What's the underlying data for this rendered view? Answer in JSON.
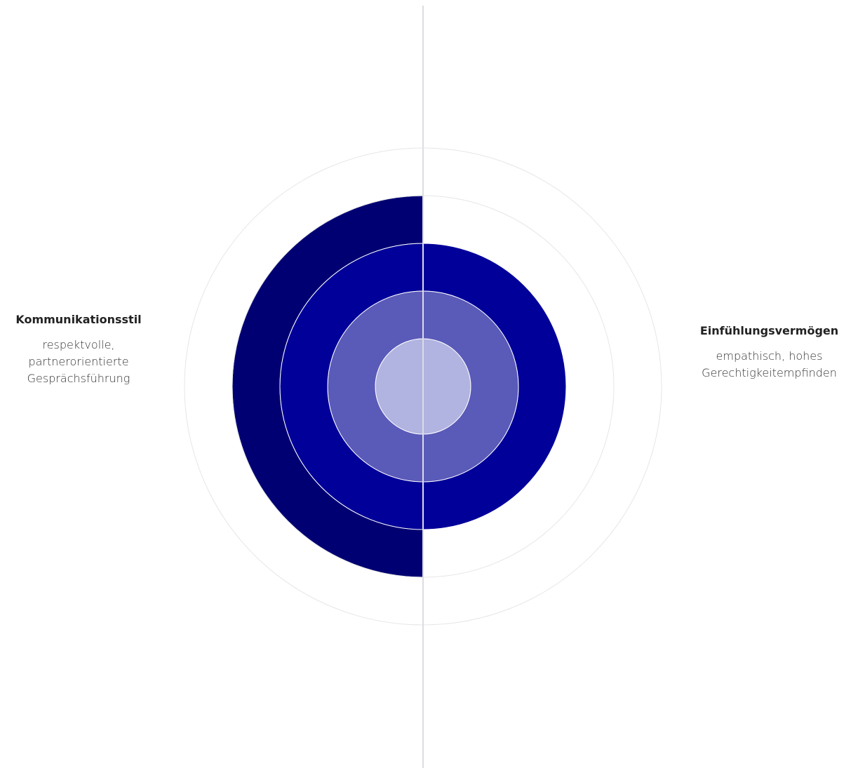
{
  "left": {
    "title": "Kommunikationsstil",
    "desc_lines": [
      "respektvolle,",
      "partnerorientierte",
      "Gesprächsführung"
    ],
    "level": 4
  },
  "right": {
    "title": "Einfühlungsvermögen",
    "desc_lines": [
      "empathisch, hohes",
      "Gerechtigkeitempfinden"
    ],
    "level": 3
  },
  "scale": {
    "max_level": 5,
    "level_colors": [
      "#b1b3e0",
      "#5a5ab9",
      "#010099",
      "#000072"
    ],
    "ring_line_color": "#e6e6e6",
    "axis_color": "#dcdce6"
  }
}
